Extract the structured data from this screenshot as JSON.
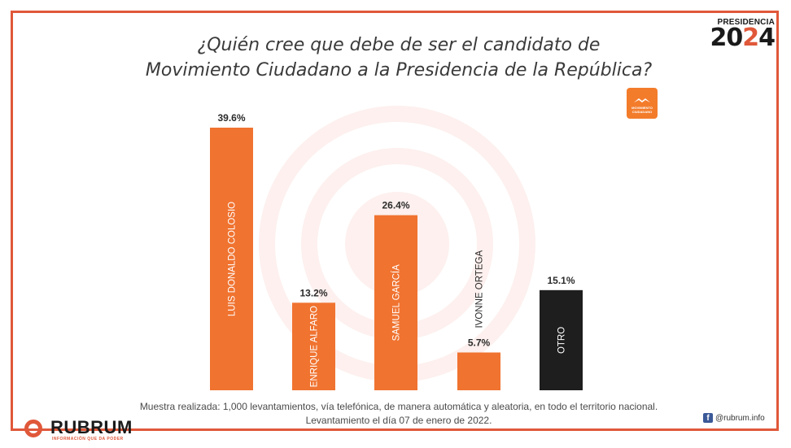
{
  "title_line1": "¿Quién cree que debe de ser el candidato de",
  "title_line2": "Movimiento Ciudadano a la Presidencia de la República?",
  "brand": {
    "label": "PRESIDENCIA",
    "year_a": "20",
    "year_b": "2",
    "year_c": "4"
  },
  "party_logo": {
    "text": "MOVIMIENTO CIUDADANO"
  },
  "chart_data": {
    "type": "bar",
    "title": "¿Quién cree que debe de ser el candidato de Movimiento Ciudadano a la Presidencia de la República?",
    "categories": [
      "LUIS DONALDO COLOSIO",
      "ENRIQUE ALFARO",
      "SAMUEL GARCÍA",
      "IVONNE ORTEGA",
      "OTRO"
    ],
    "values": [
      39.6,
      13.2,
      26.4,
      5.7,
      15.1
    ],
    "value_labels": [
      "39.6%",
      "13.2%",
      "26.4%",
      "5.7%",
      "15.1%"
    ],
    "colors": [
      "#f07330",
      "#f07330",
      "#f07330",
      "#f07330",
      "#1e1e1e"
    ],
    "ylim": [
      0,
      40
    ],
    "xlabel": "",
    "ylabel": ""
  },
  "footer": {
    "line1": "Muestra realizada: 1,000 levantamientos, vía telefónica, de manera automática y aleatoria, en todo el territorio nacional.",
    "line2": "Levantamiento el día 07 de enero de 2022."
  },
  "logo": {
    "name": "RUBRUM",
    "tagline": "INFORMACIÓN QUE DA PODER"
  },
  "social": {
    "icon": "facebook-icon",
    "handle": "@rubrum.info"
  }
}
